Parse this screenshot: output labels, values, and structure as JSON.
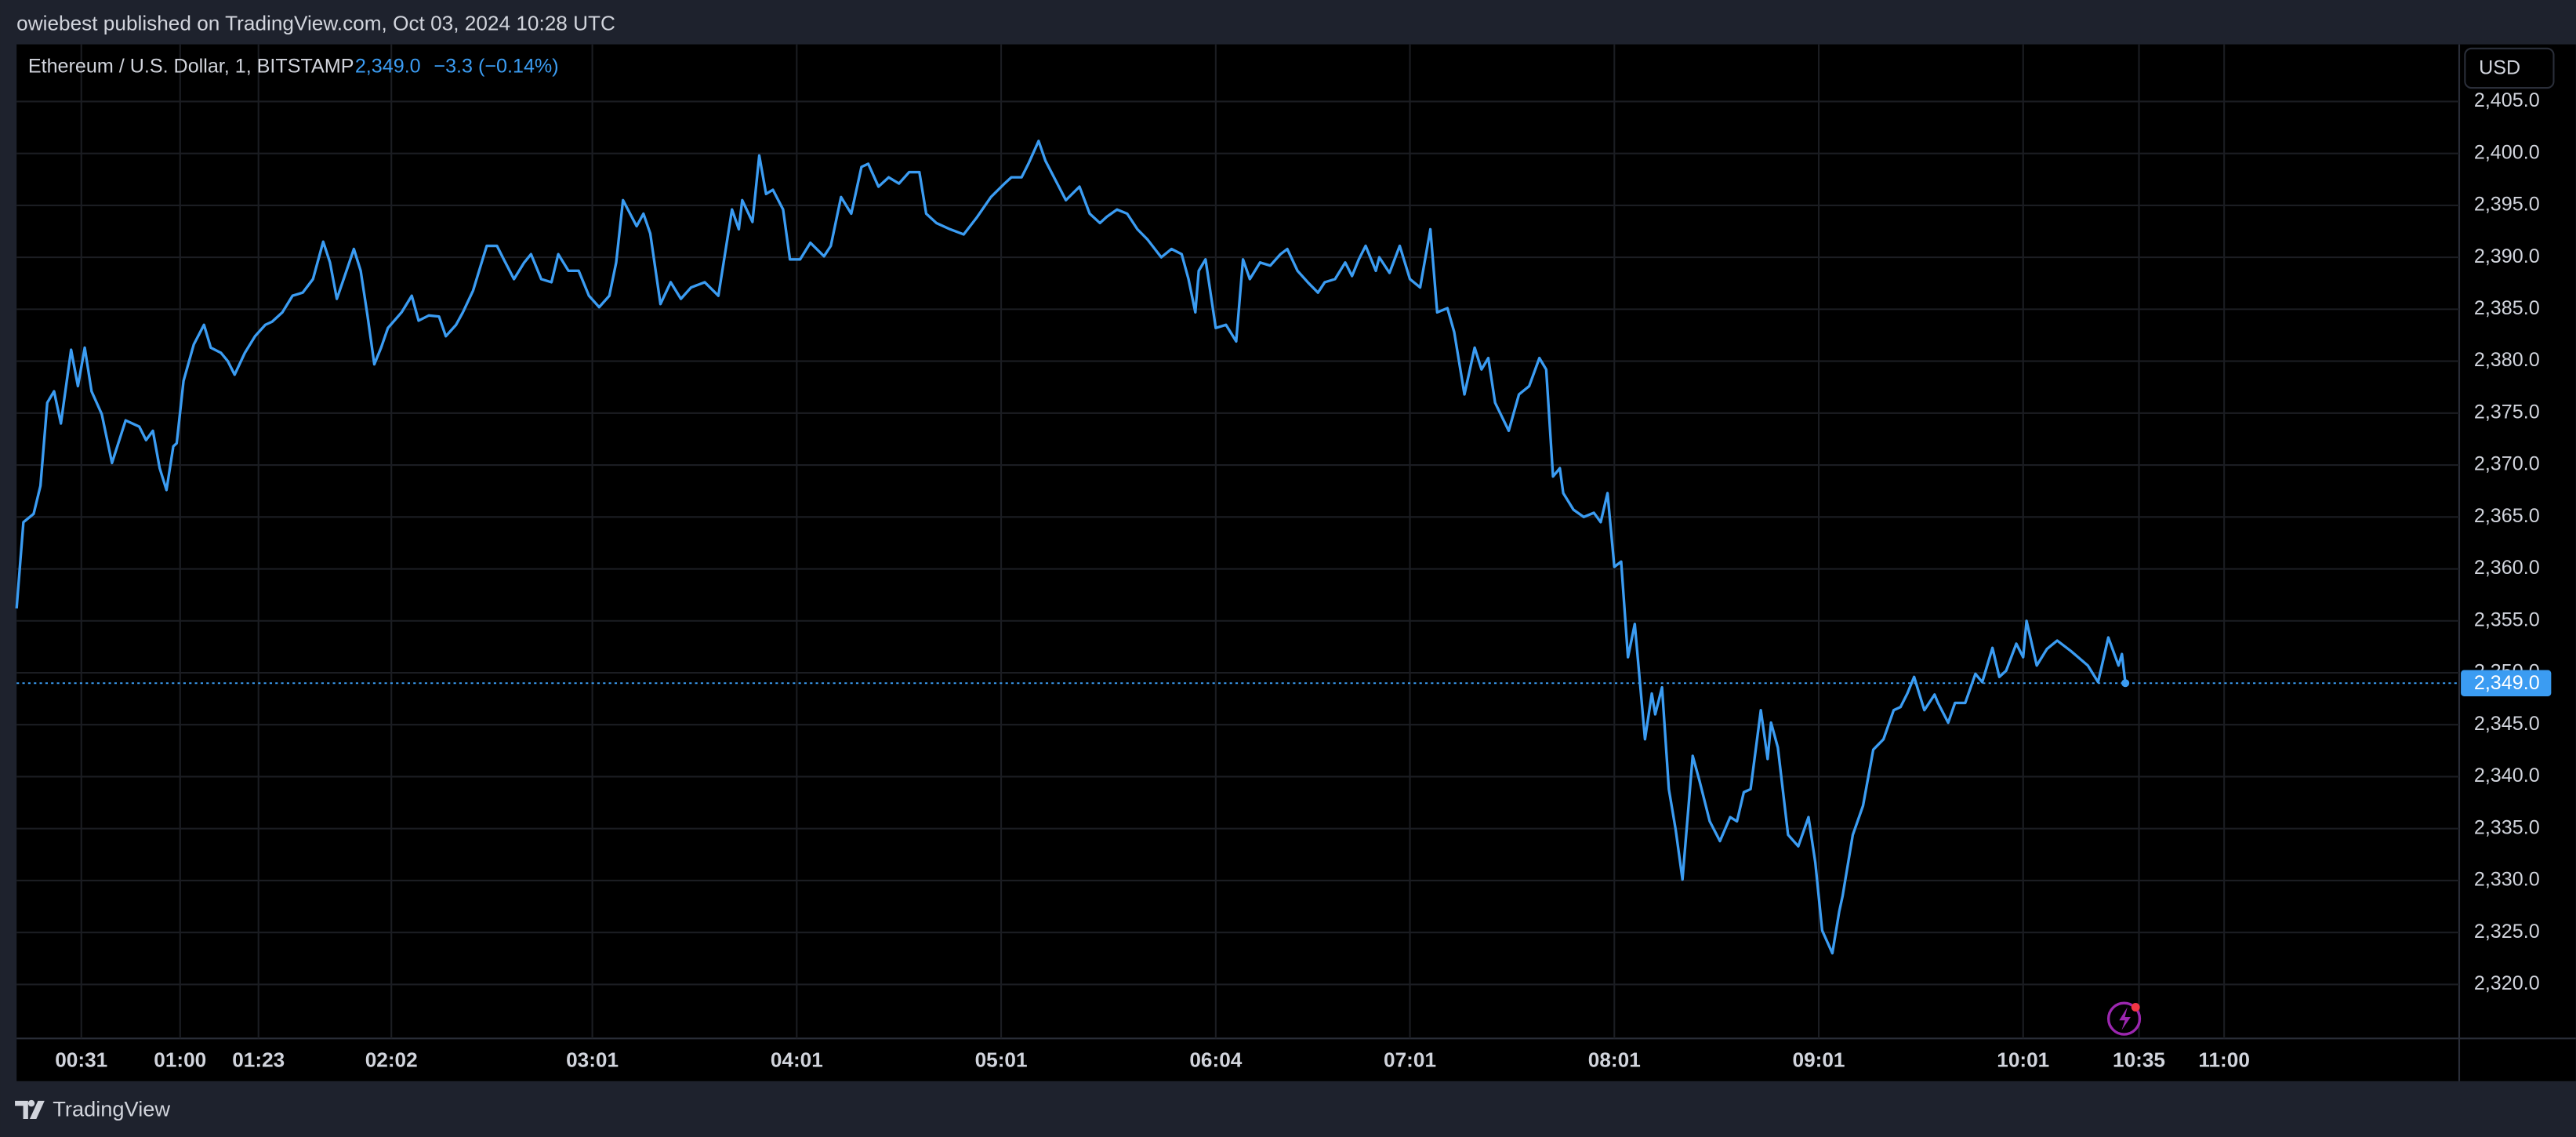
{
  "header": {
    "publisher": "owiebest published on TradingView.com, Oct 03, 2024 10:28 UTC",
    "symbol": "Ethereum / U.S. Dollar, 1, BITSTAMP",
    "price": "2,349.0",
    "change": "−3.3 (−0.14%)",
    "currency": "USD"
  },
  "footer": {
    "brand": "TradingView"
  },
  "chart_data": {
    "type": "line",
    "color": "#3b9cf2",
    "grid": true,
    "x": [
      12,
      14,
      17,
      19,
      21,
      23,
      25,
      28,
      30,
      32,
      34,
      37,
      40,
      44,
      48,
      50,
      52,
      54,
      56,
      58,
      59,
      61,
      64,
      67,
      69,
      72,
      74,
      76,
      79,
      82,
      85,
      87,
      90,
      93,
      96,
      99,
      102,
      104,
      106,
      108,
      111,
      113,
      115,
      117,
      119,
      121,
      125,
      128,
      130,
      133,
      136,
      138,
      141,
      143,
      146,
      150,
      153,
      155,
      158,
      161,
      163,
      166,
      169,
      171,
      174,
      177,
      180,
      183,
      186,
      188,
      190,
      194,
      196,
      198,
      201,
      204,
      207,
      210,
      214,
      218,
      222,
      224,
      225,
      228,
      230,
      232,
      234,
      237,
      239,
      242,
      245,
      249,
      251,
      254,
      257,
      260,
      262,
      265,
      268,
      271,
      274,
      277,
      279,
      282,
      286,
      290,
      294,
      298,
      302,
      304,
      307,
      309,
      312,
      314,
      317,
      320,
      324,
      327,
      330,
      332,
      335,
      338,
      341,
      344,
      348,
      351,
      354,
      356,
      358,
      359,
      361,
      364,
      367,
      370,
      372,
      374,
      377,
      380,
      383,
      385,
      388,
      391,
      394,
      396,
      399,
      402,
      404,
      406,
      408,
      411,
      412,
      415,
      418,
      421,
      424,
      427,
      429,
      432,
      434,
      437,
      440,
      442,
      444,
      446,
      450,
      453,
      456,
      459,
      461,
      463,
      465,
      466,
      469,
      472,
      475,
      477,
      479,
      481,
      483,
      485,
      487,
      490,
      492,
      493,
      495,
      497,
      499,
      501,
      504,
      506,
      509,
      512,
      515,
      517,
      519,
      521,
      524,
      526,
      527,
      529,
      532,
      535,
      538,
      540,
      542,
      545,
      547,
      548,
      551,
      554,
      557,
      560,
      563,
      565,
      567,
      569,
      572,
      575,
      576,
      579,
      581,
      584,
      587,
      589,
      592,
      594,
      596,
      599,
      601,
      602,
      605,
      608,
      611,
      615,
      620,
      623,
      626,
      629,
      630,
      631
    ],
    "values": [
      2356.2,
      2364.5,
      2365.3,
      2368.0,
      2376.0,
      2377.1,
      2374.0,
      2381.1,
      2377.6,
      2381.3,
      2377.1,
      2374.9,
      2370.2,
      2374.3,
      2373.7,
      2372.4,
      2373.3,
      2369.7,
      2367.6,
      2371.8,
      2372.1,
      2378.1,
      2381.6,
      2383.5,
      2381.3,
      2380.8,
      2380.0,
      2378.7,
      2380.8,
      2382.4,
      2383.5,
      2383.8,
      2384.7,
      2386.3,
      2386.6,
      2387.9,
      2391.5,
      2389.5,
      2386.0,
      2387.9,
      2390.8,
      2388.7,
      2384.4,
      2379.7,
      2381.3,
      2383.2,
      2384.7,
      2386.3,
      2383.9,
      2384.4,
      2384.3,
      2382.4,
      2383.5,
      2384.7,
      2386.8,
      2391.1,
      2391.1,
      2389.8,
      2387.9,
      2389.5,
      2390.3,
      2387.9,
      2387.6,
      2390.3,
      2388.7,
      2388.7,
      2386.3,
      2385.2,
      2386.3,
      2389.5,
      2395.5,
      2393.0,
      2394.2,
      2392.3,
      2385.5,
      2387.6,
      2386.0,
      2387.1,
      2387.6,
      2386.3,
      2394.6,
      2392.7,
      2395.5,
      2393.4,
      2399.8,
      2396.1,
      2396.5,
      2394.6,
      2389.8,
      2389.8,
      2391.4,
      2390.1,
      2391.1,
      2395.8,
      2394.2,
      2398.7,
      2399.0,
      2396.8,
      2397.7,
      2397.1,
      2398.2,
      2398.2,
      2394.2,
      2393.3,
      2392.7,
      2392.2,
      2393.9,
      2395.8,
      2397.1,
      2397.7,
      2397.7,
      2399.0,
      2401.2,
      2399.3,
      2397.4,
      2395.5,
      2396.8,
      2394.2,
      2393.3,
      2393.9,
      2394.6,
      2394.2,
      2392.7,
      2391.7,
      2390.0,
      2390.8,
      2390.3,
      2387.9,
      2384.7,
      2388.7,
      2389.8,
      2383.2,
      2383.5,
      2381.9,
      2389.8,
      2387.9,
      2389.5,
      2389.2,
      2390.3,
      2390.8,
      2388.7,
      2387.6,
      2386.6,
      2387.6,
      2387.9,
      2389.5,
      2388.2,
      2389.8,
      2391.1,
      2388.7,
      2390.0,
      2388.5,
      2391.1,
      2387.9,
      2387.1,
      2392.7,
      2384.7,
      2385.1,
      2382.8,
      2376.8,
      2381.3,
      2379.2,
      2380.3,
      2376.0,
      2373.3,
      2376.8,
      2377.6,
      2380.3,
      2379.2,
      2368.9,
      2369.7,
      2367.3,
      2365.7,
      2365.0,
      2365.4,
      2364.5,
      2367.3,
      2360.2,
      2360.7,
      2351.5,
      2354.7,
      2343.6,
      2348.0,
      2346.0,
      2348.6,
      2338.8,
      2334.9,
      2330.1,
      2342.0,
      2339.6,
      2335.7,
      2333.8,
      2336.1,
      2335.7,
      2338.5,
      2338.8,
      2346.4,
      2341.7,
      2345.2,
      2342.8,
      2334.4,
      2333.3,
      2336.1,
      2331.7,
      2325.2,
      2323.0,
      2327.0,
      2328.5,
      2334.4,
      2337.2,
      2342.6,
      2343.6,
      2346.4,
      2346.7,
      2348.0,
      2349.6,
      2346.4,
      2347.9,
      2347.1,
      2345.2,
      2347.1,
      2347.1,
      2349.9,
      2349.1,
      2352.4,
      2349.6,
      2350.2,
      2352.8,
      2351.5,
      2355.0,
      2350.7,
      2352.3,
      2353.1,
      2352.1,
      2350.7,
      2349.1,
      2353.4,
      2350.7,
      2351.8,
      2349.0
    ],
    "xlim": [
      12,
      729
    ],
    "xticks": [
      {
        "value": 31,
        "label": "00:31"
      },
      {
        "value": 60,
        "label": "01:00"
      },
      {
        "value": 83,
        "label": "01:23"
      },
      {
        "value": 122,
        "label": "02:02"
      },
      {
        "value": 181,
        "label": "03:01"
      },
      {
        "value": 241,
        "label": "04:01"
      },
      {
        "value": 301,
        "label": "05:01"
      },
      {
        "value": 364,
        "label": "06:04"
      },
      {
        "value": 421,
        "label": "07:01"
      },
      {
        "value": 481,
        "label": "08:01"
      },
      {
        "value": 541,
        "label": "09:01"
      },
      {
        "value": 601,
        "label": "10:01"
      },
      {
        "value": 635,
        "label": "10:35"
      },
      {
        "value": 660,
        "label": "11:00"
      }
    ],
    "ylim": [
      2314.8,
      2410.5
    ],
    "yticks": [
      {
        "value": 2320,
        "label": "2,320.0"
      },
      {
        "value": 2325,
        "label": "2,325.0"
      },
      {
        "value": 2330,
        "label": "2,330.0"
      },
      {
        "value": 2335,
        "label": "2,335.0"
      },
      {
        "value": 2340,
        "label": "2,340.0"
      },
      {
        "value": 2345,
        "label": "2,345.0"
      },
      {
        "value": 2350,
        "label": "2,350.0"
      },
      {
        "value": 2355,
        "label": "2,355.0"
      },
      {
        "value": 2360,
        "label": "2,360.0"
      },
      {
        "value": 2365,
        "label": "2,365.0"
      },
      {
        "value": 2370,
        "label": "2,370.0"
      },
      {
        "value": 2375,
        "label": "2,375.0"
      },
      {
        "value": 2380,
        "label": "2,380.0"
      },
      {
        "value": 2385,
        "label": "2,385.0"
      },
      {
        "value": 2390,
        "label": "2,390.0"
      },
      {
        "value": 2395,
        "label": "2,395.0"
      },
      {
        "value": 2400,
        "label": "2,400.0"
      },
      {
        "value": 2405,
        "label": "2,405.0"
      }
    ],
    "price_line": {
      "value": 2349.0,
      "label": "2,349.0"
    }
  }
}
